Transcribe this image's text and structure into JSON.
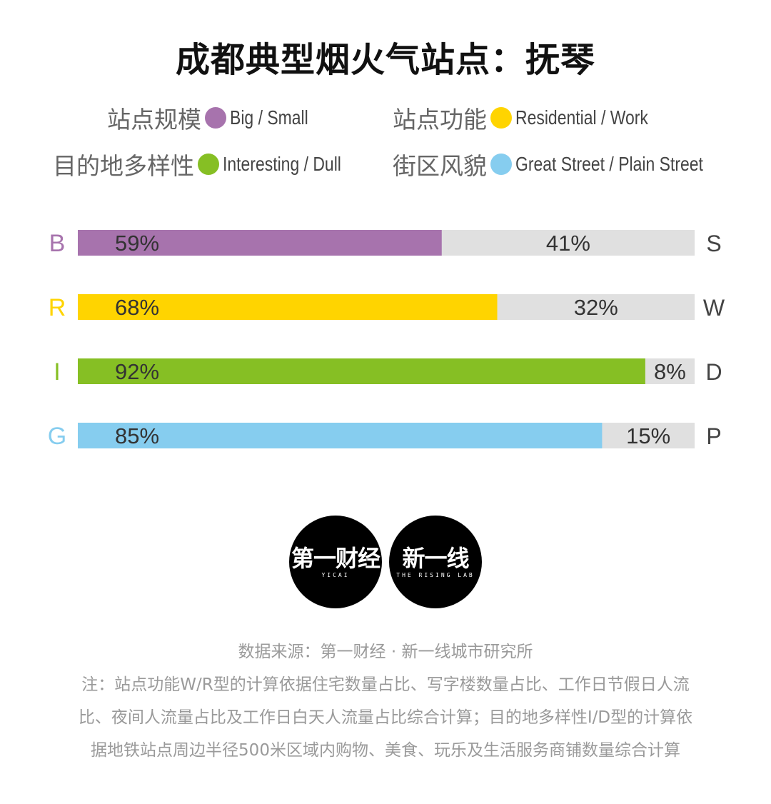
{
  "title": "成都典型烟火气站点：抚琴",
  "legend": [
    {
      "label": "站点规模",
      "desc": "Big / Small",
      "color": "#a773ad"
    },
    {
      "label": "站点功能",
      "desc": "Residential / Work",
      "color": "#ffd400"
    },
    {
      "label": "目的地多样性",
      "desc": "Interesting / Dull",
      "color": "#86bf24"
    },
    {
      "label": "街区风貌",
      "desc": "Great Street / Plain Street",
      "color": "#86cdef"
    }
  ],
  "chart_data": {
    "type": "bar",
    "orientation": "horizontal-stacked-100",
    "categories": [
      "B",
      "R",
      "I",
      "G"
    ],
    "right_labels": [
      "S",
      "W",
      "D",
      "P"
    ],
    "series": [
      {
        "values": [
          59,
          68,
          92,
          85
        ],
        "labels": [
          "59%",
          "68%",
          "92%",
          "85%"
        ]
      },
      {
        "values": [
          41,
          32,
          8,
          15
        ],
        "labels": [
          "41%",
          "32%",
          "8%",
          "15%"
        ]
      }
    ],
    "colors": [
      "#a773ad",
      "#ffd400",
      "#86bf24",
      "#86cdef"
    ],
    "remainder_color": "#e0e0e0",
    "xlim": [
      0,
      100
    ]
  },
  "logos": [
    {
      "cn": "第一财经",
      "en": "YICAI"
    },
    {
      "cn": "新一线",
      "en": "THE RISING LAB"
    }
  ],
  "source": "数据来源：第一财经 · 新一线城市研究所",
  "note_lines": [
    "注：站点功能W/R型的计算依据住宅数量占比、写字楼数量占比、工作日节假日人流",
    "比、夜间人流量占比及工作日白天人流量占比综合计算；目的地多样性I/D型的计算依",
    "据地铁站点周边半径500米区域内购物、美食、玩乐及生活服务商铺数量综合计算"
  ]
}
